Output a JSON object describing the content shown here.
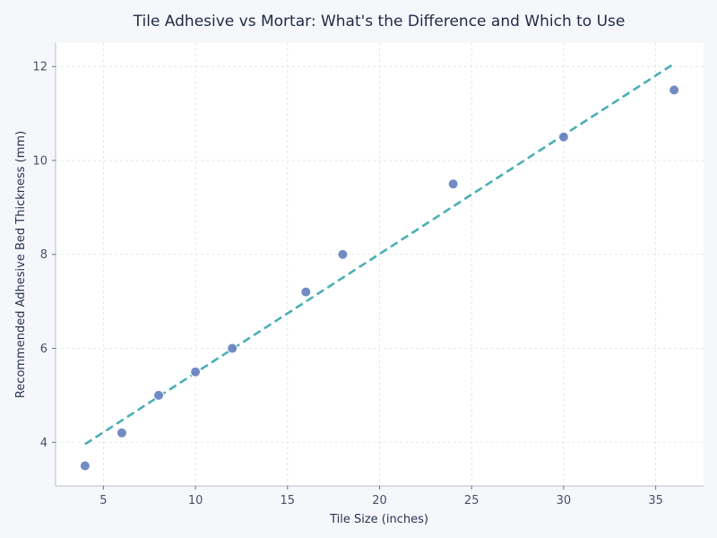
{
  "chart_data": {
    "type": "scatter",
    "title": "Tile Adhesive vs Mortar: What's the Difference and Which to Use",
    "xlabel": "Tile Size (inches)",
    "ylabel": "Recommended Adhesive Bed Thickness (mm)",
    "xlim": [
      2.4,
      37.6
    ],
    "ylim": [
      3.07,
      12.5
    ],
    "xticks": [
      5,
      10,
      15,
      20,
      25,
      30,
      35
    ],
    "yticks": [
      4,
      6,
      8,
      10,
      12
    ],
    "grid": true,
    "points": {
      "x": [
        4,
        6,
        8,
        10,
        12,
        16,
        18,
        24,
        30,
        36
      ],
      "y": [
        3.5,
        4.2,
        5.0,
        5.5,
        6.0,
        7.2,
        8.0,
        9.5,
        10.5,
        11.5
      ],
      "color": "#6a85c2"
    },
    "trendline": {
      "style": "dashed",
      "x": [
        4,
        36
      ],
      "y": [
        3.96,
        12.06
      ],
      "color": "#4aafb5"
    }
  }
}
